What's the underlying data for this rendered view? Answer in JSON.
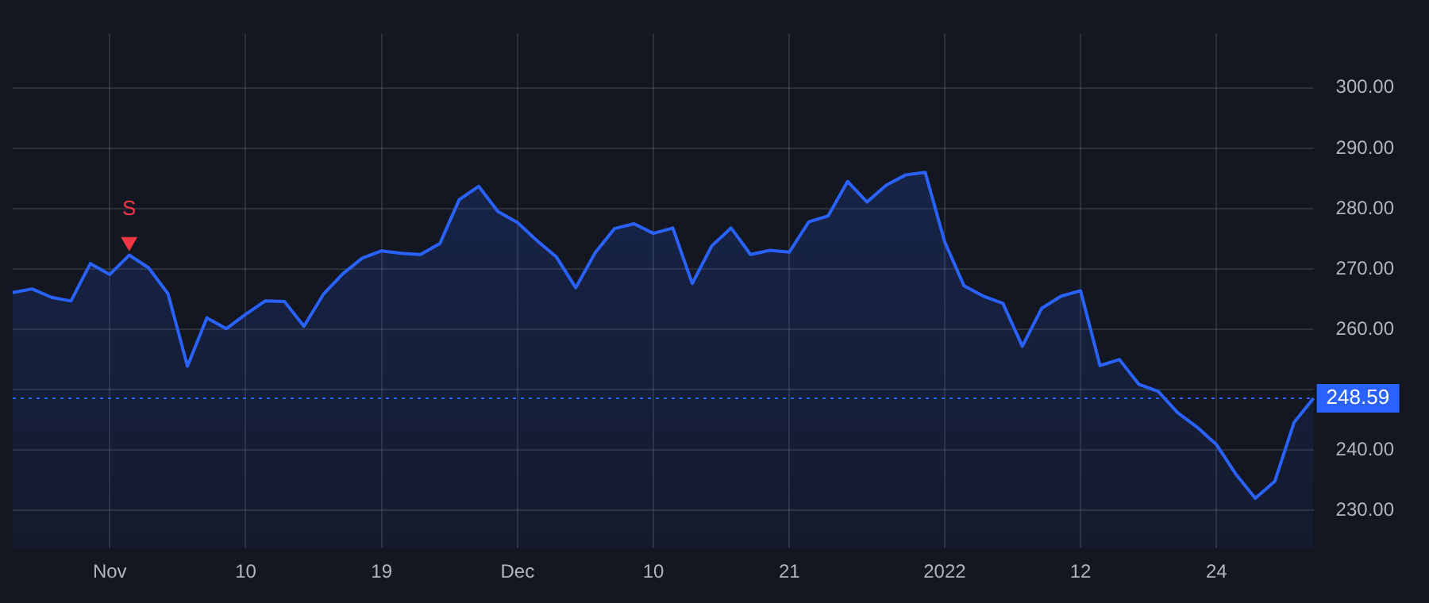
{
  "chart_data": {
    "type": "area",
    "categories": [
      null,
      null,
      null,
      null,
      null,
      "Nov",
      null,
      null,
      null,
      null,
      null,
      null,
      "10",
      null,
      null,
      null,
      null,
      null,
      null,
      "19",
      null,
      null,
      null,
      null,
      null,
      null,
      "Dec",
      null,
      null,
      null,
      null,
      null,
      null,
      "10",
      null,
      null,
      null,
      null,
      null,
      null,
      "21",
      null,
      null,
      null,
      null,
      null,
      null,
      null,
      "2022",
      null,
      null,
      null,
      null,
      null,
      null,
      "12",
      null,
      null,
      null,
      null,
      null,
      null,
      "24",
      null,
      null,
      null,
      null,
      null
    ],
    "series": [
      {
        "type": "area",
        "color": "#2962ff",
        "values": [
          266.1,
          266.7,
          265.3,
          264.7,
          270.9,
          269.1,
          272.3,
          270.2,
          265.9,
          253.9,
          261.9,
          260.1,
          262.5,
          264.7,
          264.6,
          260.5,
          265.8,
          269.2,
          271.8,
          273.0,
          272.6,
          272.4,
          274.2,
          281.5,
          283.7,
          279.5,
          277.7,
          274.7,
          272.0,
          266.9,
          272.7,
          276.7,
          277.5,
          275.9,
          276.8,
          267.6,
          273.8,
          276.8,
          272.4,
          273.1,
          272.8,
          277.8,
          278.8,
          284.5,
          281.1,
          283.9,
          285.6,
          286.0,
          274.5,
          267.2,
          265.5,
          264.3,
          257.2,
          263.5,
          265.5,
          266.4,
          254.0,
          255.0,
          250.9,
          249.7,
          246.2,
          243.8,
          240.9,
          236.0,
          232.0,
          234.8,
          244.6,
          248.59
        ]
      },
      {
        "type": "scatter",
        "color": "#f23645",
        "marker": "triangle",
        "values": [
          null,
          null,
          null,
          null,
          null,
          null,
          274.5,
          null,
          null,
          null,
          null,
          null,
          null,
          null,
          null,
          null,
          null,
          null,
          null,
          null,
          null,
          null,
          null,
          null,
          null,
          null,
          null,
          null,
          null,
          null,
          null,
          null,
          null,
          null,
          null,
          null,
          null,
          null,
          null,
          null,
          null,
          null,
          null,
          null,
          null,
          null,
          null,
          null,
          null,
          null,
          null,
          null,
          null,
          null,
          null,
          null,
          null,
          null,
          null,
          null,
          null,
          null,
          null,
          null,
          null,
          null,
          null,
          null
        ]
      }
    ],
    "annotations": [
      "S"
    ],
    "ylim": [
      223.7,
      309
    ],
    "yticks": [
      {
        "value": 230,
        "label": "230.00"
      },
      {
        "value": 240,
        "label": "240.00"
      },
      {
        "value": 250,
        "label": null
      },
      {
        "value": 260,
        "label": "260.00"
      },
      {
        "value": 270,
        "label": "270.00"
      },
      {
        "value": 280,
        "label": "280.00"
      },
      {
        "value": 290,
        "label": "290.00"
      },
      {
        "value": 300,
        "label": "300.00"
      }
    ],
    "ref_lines": [
      {
        "axis": "y",
        "value": 248.59,
        "label": "248.59",
        "color": "#2962ff",
        "line_style": "dotted"
      }
    ],
    "grid": true,
    "legend": false
  }
}
